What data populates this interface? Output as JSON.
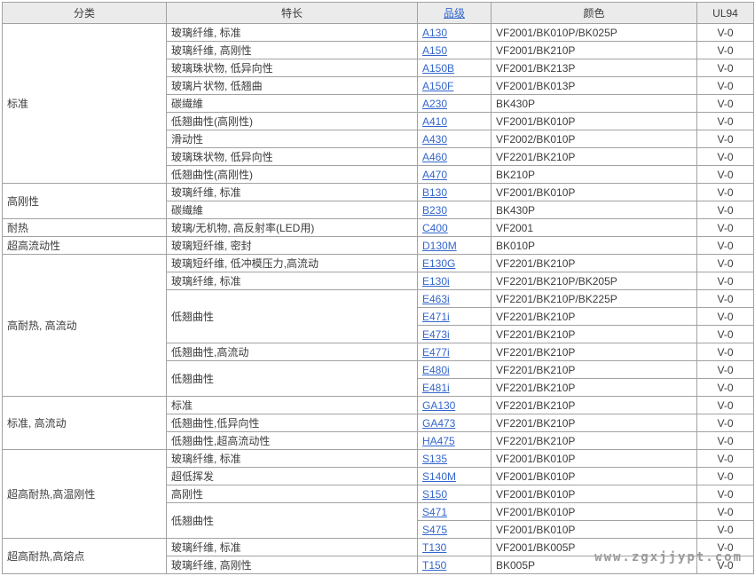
{
  "page": {
    "watermark": "www.zgxjjypt.com"
  },
  "colors": {
    "header_bg": "#ebebeb",
    "border": "#a2a2a2",
    "link": "#3366cc",
    "text": "#3c3c3c",
    "watermark": "#9a9a9a",
    "ul94_value_all": "V-0"
  },
  "table": {
    "headers": [
      "分类",
      "特长",
      "品级",
      "颜色",
      "UL94"
    ],
    "categories": [
      {
        "label": "标准",
        "features": [
          {
            "label": "玻璃纤维, 标准",
            "rows": [
              {
                "grade": "A130",
                "color": "VF2001/BK010P/BK025P",
                "ul94": "V-0"
              }
            ]
          },
          {
            "label": "玻璃纤维, 高刚性",
            "rows": [
              {
                "grade": "A150",
                "color": "VF2001/BK210P",
                "ul94": "V-0"
              }
            ]
          },
          {
            "label": "玻璃珠状物, 低异向性",
            "rows": [
              {
                "grade": "A150B",
                "color": "VF2001/BK213P",
                "ul94": "V-0"
              }
            ]
          },
          {
            "label": "玻璃片状物, 低翘曲",
            "rows": [
              {
                "grade": "A150F",
                "color": "VF2001/BK013P",
                "ul94": "V-0"
              }
            ]
          },
          {
            "label": "碳繊維",
            "rows": [
              {
                "grade": "A230",
                "color": "BK430P",
                "ul94": "V-0"
              }
            ]
          },
          {
            "label": "低翘曲性(高刚性)",
            "rows": [
              {
                "grade": "A410",
                "color": "VF2001/BK010P",
                "ul94": "V-0"
              }
            ]
          },
          {
            "label": "滑动性",
            "rows": [
              {
                "grade": "A430",
                "color": "VF2002/BK010P",
                "ul94": "V-0"
              }
            ]
          },
          {
            "label": "玻璃珠状物, 低异向性",
            "rows": [
              {
                "grade": "A460",
                "color": "VF2201/BK210P",
                "ul94": "V-0"
              }
            ]
          },
          {
            "label": "低翘曲性(高刚性)",
            "rows": [
              {
                "grade": "A470",
                "color": "BK210P",
                "ul94": "V-0"
              }
            ]
          }
        ]
      },
      {
        "label": "高刚性",
        "features": [
          {
            "label": "玻璃纤维, 标准",
            "rows": [
              {
                "grade": "B130",
                "color": "VF2001/BK010P",
                "ul94": "V-0"
              }
            ]
          },
          {
            "label": "碳繊維",
            "rows": [
              {
                "grade": "B230",
                "color": "BK430P",
                "ul94": "V-0"
              }
            ]
          }
        ]
      },
      {
        "label": "耐热",
        "features": [
          {
            "label": "玻璃/无机物, 高反射率(LED用)",
            "rows": [
              {
                "grade": "C400",
                "color": "VF2001",
                "ul94": "V-0"
              }
            ]
          }
        ]
      },
      {
        "label": "超高流动性",
        "features": [
          {
            "label": "玻璃短纤维, 密封",
            "rows": [
              {
                "grade": "D130M",
                "color": "BK010P",
                "ul94": "V-0"
              }
            ]
          }
        ]
      },
      {
        "label": "高耐热, 高流动",
        "features": [
          {
            "label": "玻璃短纤维, 低冲模压力,高流动",
            "rows": [
              {
                "grade": "E130G",
                "color": "VF2201/BK210P",
                "ul94": "V-0"
              }
            ]
          },
          {
            "label": "玻璃纤维, 标准",
            "rows": [
              {
                "grade": "E130i",
                "color": "VF2201/BK210P/BK205P",
                "ul94": "V-0"
              }
            ]
          },
          {
            "label": "低翘曲性",
            "rows": [
              {
                "grade": "E463i",
                "color": "VF2201/BK210P/BK225P",
                "ul94": "V-0"
              },
              {
                "grade": "E471i",
                "color": "VF2201/BK210P",
                "ul94": "V-0"
              },
              {
                "grade": "E473i",
                "color": "VF2201/BK210P",
                "ul94": "V-0"
              }
            ]
          },
          {
            "label": "低翘曲性,高流动",
            "rows": [
              {
                "grade": "E477i",
                "color": "VF2201/BK210P",
                "ul94": "V-0"
              }
            ]
          },
          {
            "label": "低翘曲性",
            "rows": [
              {
                "grade": "E480i",
                "color": "VF2201/BK210P",
                "ul94": "V-0"
              },
              {
                "grade": "E481i",
                "color": "VF2201/BK210P",
                "ul94": "V-0"
              }
            ]
          }
        ]
      },
      {
        "label": "标准, 高流动",
        "features": [
          {
            "label": "标准",
            "rows": [
              {
                "grade": "GA130",
                "color": "VF2201/BK210P",
                "ul94": "V-0"
              }
            ]
          },
          {
            "label": "低翘曲性,低异向性",
            "rows": [
              {
                "grade": "GA473",
                "color": "VF2201/BK210P",
                "ul94": "V-0"
              }
            ]
          },
          {
            "label": "低翘曲性,超高流动性",
            "rows": [
              {
                "grade": "HA475",
                "color": "VF2201/BK210P",
                "ul94": "V-0"
              }
            ]
          }
        ]
      },
      {
        "label": "超高耐热,高温刚性",
        "features": [
          {
            "label": "玻璃纤维, 标准",
            "rows": [
              {
                "grade": "S135",
                "color": "VF2001/BK010P",
                "ul94": "V-0"
              }
            ]
          },
          {
            "label": "超低挥发",
            "rows": [
              {
                "grade": "S140M",
                "color": "VF2001/BK010P",
                "ul94": "V-0"
              }
            ]
          },
          {
            "label": "高刚性",
            "rows": [
              {
                "grade": "S150",
                "color": "VF2001/BK010P",
                "ul94": "V-0"
              }
            ]
          },
          {
            "label": "低翘曲性",
            "rows": [
              {
                "grade": "S471",
                "color": "VF2001/BK010P",
                "ul94": "V-0"
              },
              {
                "grade": "S475",
                "color": "VF2001/BK010P",
                "ul94": "V-0"
              }
            ]
          }
        ]
      },
      {
        "label": "超高耐热,高熔点",
        "features": [
          {
            "label": "玻璃纤维, 标准",
            "rows": [
              {
                "grade": "T130",
                "color": "VF2001/BK005P",
                "ul94": "V-0"
              }
            ]
          },
          {
            "label": "玻璃纤维, 高刚性",
            "rows": [
              {
                "grade": "T150",
                "color": "BK005P",
                "ul94": "V-0"
              }
            ]
          }
        ]
      }
    ]
  }
}
